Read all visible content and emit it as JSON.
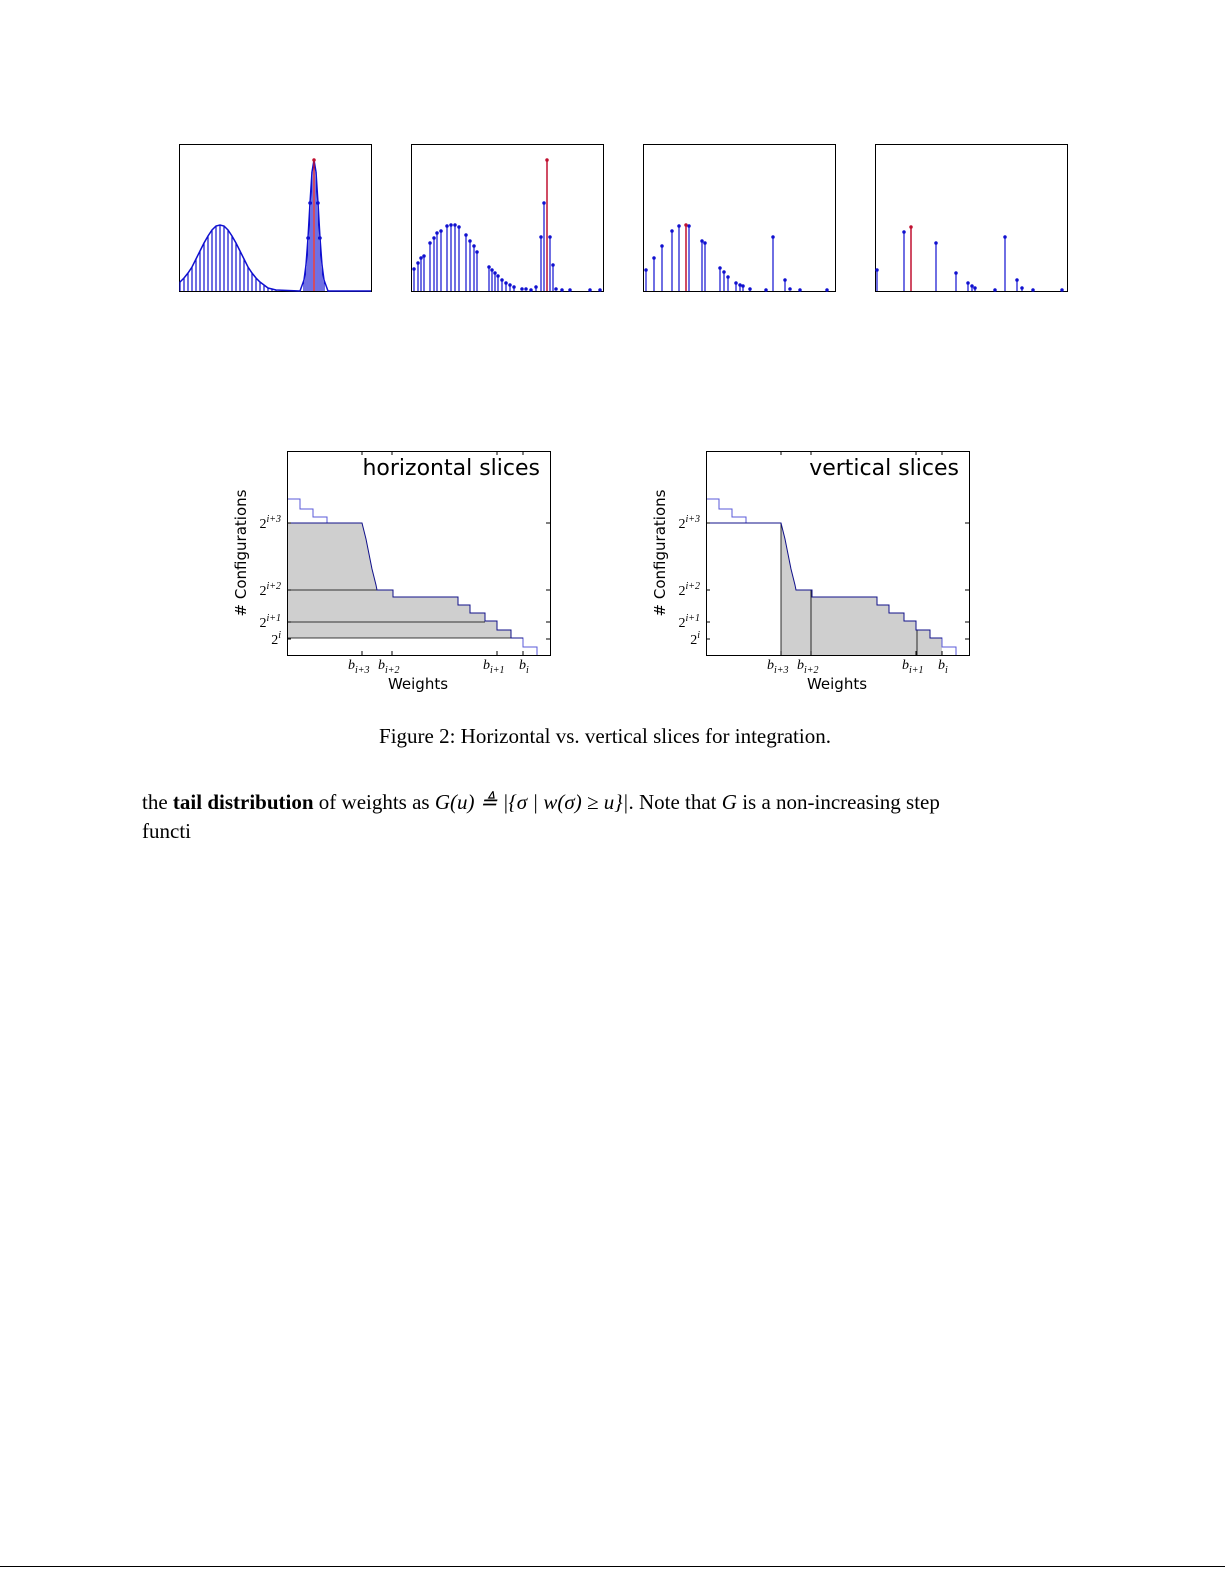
{
  "figure": {
    "panels": [
      {
        "title": "horizontal slices",
        "ylabel": "# Configurations",
        "xlabel": "Weights",
        "yticks": [
          {
            "base": "2",
            "sup": "i+3"
          },
          {
            "base": "2",
            "sup": "i+2"
          },
          {
            "base": "2",
            "sup": "i+1"
          },
          {
            "base": "2",
            "sup": "i"
          }
        ],
        "xticks": [
          {
            "base": "b",
            "sub": "i+3"
          },
          {
            "base": "b",
            "sub": "i+2"
          },
          {
            "base": "b",
            "sub": "i+1"
          },
          {
            "base": "b",
            "sub": "i"
          }
        ]
      },
      {
        "title": "vertical slices",
        "ylabel": "# Configurations",
        "xlabel": "Weights",
        "yticks": [
          {
            "base": "2",
            "sup": "i+3"
          },
          {
            "base": "2",
            "sup": "i+2"
          },
          {
            "base": "2",
            "sup": "i+1"
          },
          {
            "base": "2",
            "sup": "i"
          }
        ],
        "xticks": [
          {
            "base": "b",
            "sub": "i+3"
          },
          {
            "base": "b",
            "sub": "i+2"
          },
          {
            "base": "b",
            "sub": "i+1"
          },
          {
            "base": "b",
            "sub": "i"
          }
        ]
      }
    ],
    "caption": "Figure 2: Horizontal vs. vertical slices for integration."
  },
  "body": {
    "line1": [
      "the ",
      "tail distribution",
      " of weights as ",
      "G(u) ≜ |{σ | w(σ) ≥ u}|",
      ". Note that ",
      "G",
      " is a non-increasing step"
    ],
    "line2": "functi"
  }
}
